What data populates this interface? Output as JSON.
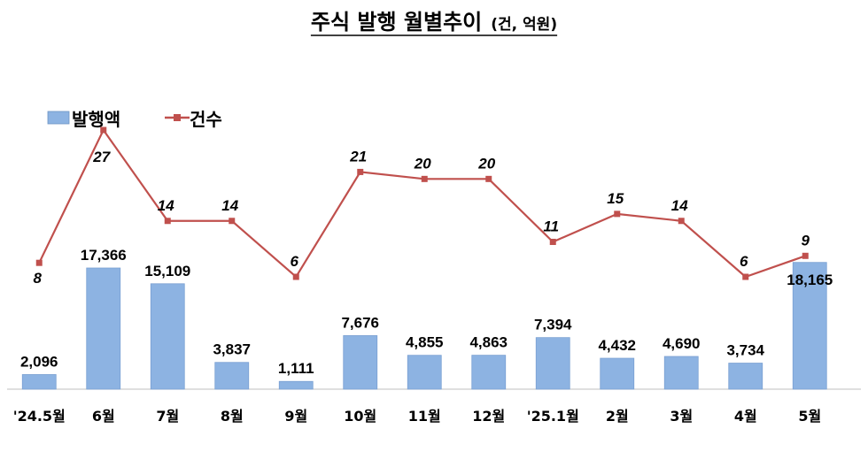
{
  "chart_data": {
    "type": "bar",
    "title": "주식 발행 월별추이",
    "title_unit": "(건, 억원)",
    "categories": [
      "'24.5월",
      "6월",
      "7월",
      "8월",
      "9월",
      "10월",
      "11월",
      "12월",
      "'25.1월",
      "2월",
      "3월",
      "4월",
      "5월"
    ],
    "series": [
      {
        "name": "발행액",
        "type": "bar",
        "color": "#8db3e2",
        "values": [
          2096,
          17366,
          15109,
          3837,
          1111,
          7676,
          4855,
          4863,
          7394,
          4432,
          4690,
          3734,
          18165
        ],
        "labels": [
          "2,096",
          "17,366",
          "15,109",
          "3,837",
          "1,111",
          "7,676",
          "4,855",
          "4,863",
          "7,394",
          "4,432",
          "4,690",
          "3,734",
          "18,165"
        ]
      },
      {
        "name": "건수",
        "type": "line",
        "color": "#c0504d",
        "values": [
          8,
          27,
          14,
          14,
          6,
          21,
          20,
          20,
          11,
          15,
          14,
          6,
          9
        ],
        "labels": [
          "8",
          "27",
          "14",
          "14",
          "6",
          "21",
          "20",
          "20",
          "11",
          "15",
          "14",
          "6",
          "9"
        ]
      }
    ],
    "legend_position": "top-left",
    "grid": false
  }
}
